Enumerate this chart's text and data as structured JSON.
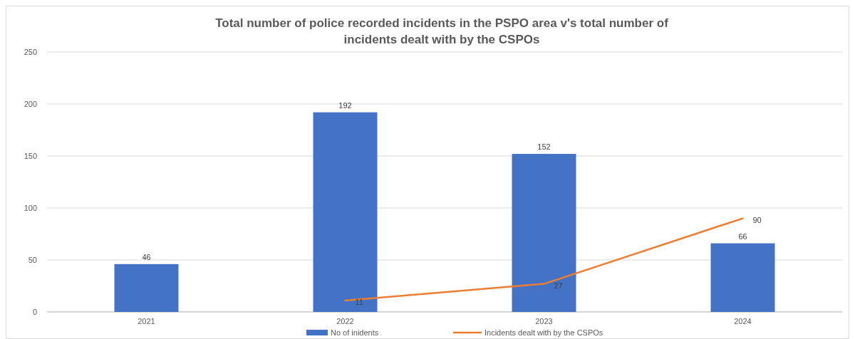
{
  "chart_data": {
    "type": "bar",
    "title": "Total number of police recorded incidents in the PSPO area v's total number of incidents dealt with by the CSPOs",
    "categories": [
      "2021",
      "2022",
      "2023",
      "2024"
    ],
    "series": [
      {
        "name": "No of inidents",
        "color": "#4472c4",
        "values": [
          46,
          192,
          152,
          66
        ]
      },
      {
        "name": "Incidents dealt with by the CSPOs",
        "type": "line",
        "color": "#ed7d31",
        "values": [
          null,
          11,
          27,
          90
        ]
      }
    ],
    "ylim": [
      0,
      250
    ],
    "yticks": [
      0,
      50,
      100,
      150,
      200,
      250
    ],
    "grid": "y",
    "legend": "bottom",
    "data_labels": true,
    "marker": "none"
  }
}
